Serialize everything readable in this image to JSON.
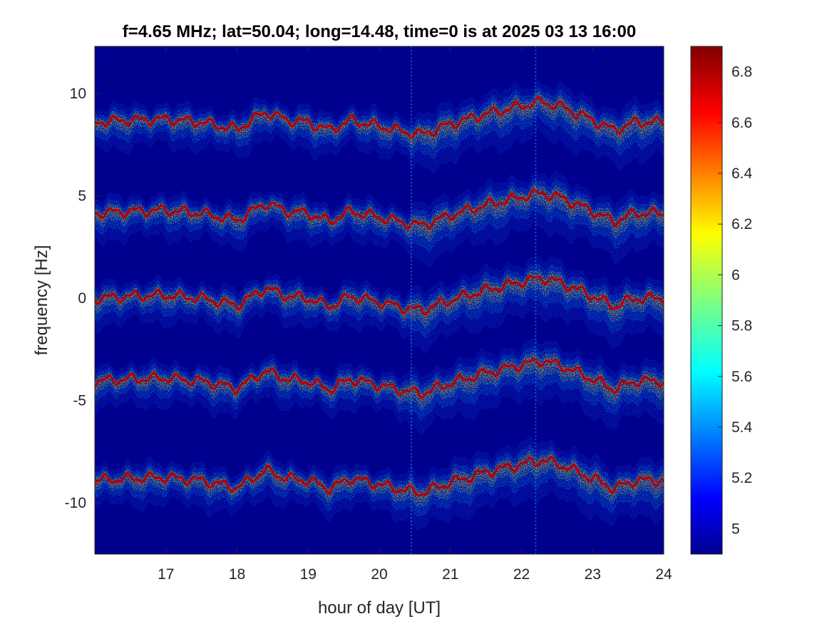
{
  "chart_data": {
    "type": "heatmap",
    "title": "f=4.65 MHz;  lat=50.04; long=14.48, time=0 is at 2025 03 13 16:00",
    "xlabel": "hour of day [UT]",
    "ylabel": "frequency [Hz]",
    "xlim": [
      16,
      24
    ],
    "ylim": [
      -12.5,
      12.3
    ],
    "xticks": [
      17,
      18,
      19,
      20,
      21,
      22,
      23,
      24
    ],
    "xtick_labels": [
      "17",
      "18",
      "19",
      "20",
      "21",
      "22",
      "23",
      "24"
    ],
    "yticks": [
      -10,
      -5,
      0,
      5,
      10
    ],
    "ytick_labels": [
      "-10",
      "-5",
      "0",
      "5",
      "10"
    ],
    "colorbar": {
      "ticks": [
        5,
        5.2,
        5.4,
        5.6,
        5.8,
        6,
        6.2,
        6.4,
        6.6,
        6.8
      ],
      "tick_labels": [
        "5",
        "5.2",
        "5.4",
        "5.6",
        "5.8",
        "6",
        "6.2",
        "6.4",
        "6.6",
        "6.8"
      ],
      "range": [
        4.9,
        6.9
      ],
      "colormap": "jet"
    },
    "background_value": 4.9,
    "traces": [
      {
        "offset": 8.6
      },
      {
        "offset": 4.15
      },
      {
        "offset": 0.0
      },
      {
        "offset": -4.05
      },
      {
        "offset": -8.9
      }
    ],
    "trend": {
      "x": [
        16.0,
        16.5,
        17.0,
        17.5,
        18.0,
        18.4,
        18.7,
        19.0,
        19.3,
        19.6,
        20.0,
        20.4,
        20.6,
        21.0,
        21.5,
        22.0,
        22.3,
        22.6,
        23.0,
        23.3,
        23.6,
        24.0
      ],
      "y": [
        0.0,
        0.1,
        0.15,
        0.0,
        -0.35,
        0.5,
        0.1,
        0.0,
        -0.4,
        0.1,
        -0.2,
        -0.5,
        -0.6,
        -0.1,
        0.4,
        0.8,
        1.0,
        0.7,
        0.1,
        -0.4,
        0.0,
        0.0
      ]
    },
    "grid": false,
    "legend": "none"
  }
}
